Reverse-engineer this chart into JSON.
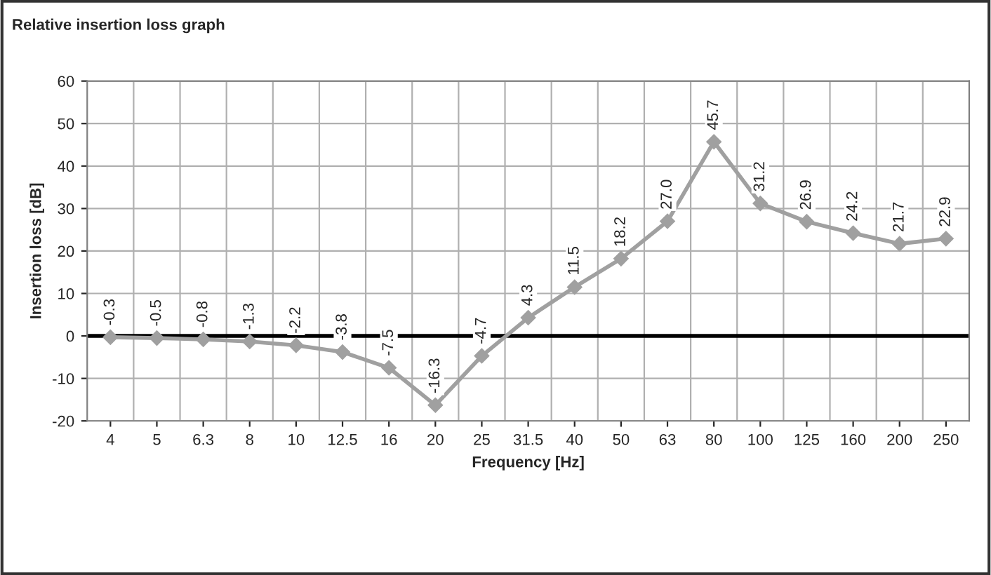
{
  "chart_data": {
    "type": "line",
    "title": "Relative insertion loss graph",
    "xlabel": "Frequency [Hz]",
    "ylabel": "Insertion loss [dB]",
    "categories": [
      "4",
      "5",
      "6.3",
      "8",
      "10",
      "12.5",
      "16",
      "20",
      "25",
      "31.5",
      "40",
      "50",
      "63",
      "80",
      "100",
      "125",
      "160",
      "200",
      "250"
    ],
    "series": [
      {
        "color": "#a0a0a0",
        "values": [
          -0.3,
          -0.5,
          -0.8,
          -1.3,
          -2.2,
          -3.8,
          -7.5,
          -16.3,
          -4.7,
          4.3,
          11.5,
          18.2,
          27.0,
          45.7,
          31.2,
          26.9,
          24.2,
          21.7,
          22.9
        ],
        "value_labels": [
          "-0.3",
          "-0.5",
          "-0.8",
          "-1.3",
          "-2.2",
          "-3.8",
          "-7.5",
          "-16.3",
          "-4.7",
          "4.3",
          "11.5",
          "18.2",
          "27.0",
          "45.7",
          "31.2",
          "26.9",
          "24.2",
          "21.7",
          "22.9"
        ]
      }
    ],
    "ylim": [
      -20,
      60
    ],
    "yticks": [
      -20,
      -10,
      0,
      10,
      20,
      30,
      40,
      50,
      60
    ],
    "ref_lines": [
      {
        "axis": "y",
        "value": 0,
        "color": "#000000"
      }
    ],
    "grid": true,
    "marker": "diamond",
    "line_style": "solid"
  }
}
